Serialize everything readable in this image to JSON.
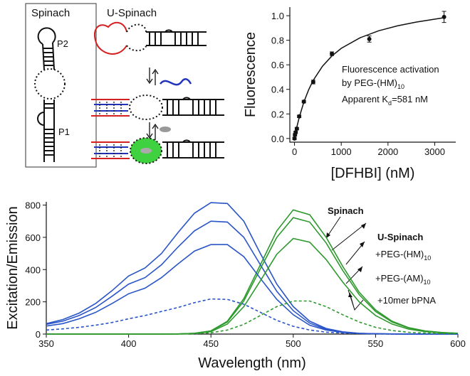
{
  "diagram": {
    "spinach_title": "Spinach",
    "p2": "P2",
    "p1": "P1",
    "u_spinach_title": "U-Spinach"
  },
  "chart_data": [
    {
      "type": "scatter",
      "x": [
        0,
        10,
        25,
        50,
        100,
        200,
        400,
        800,
        1600,
        3200
      ],
      "values": [
        0.0,
        0.03,
        0.05,
        0.08,
        0.18,
        0.3,
        0.46,
        0.69,
        0.81,
        0.99
      ],
      "errors": [
        0.01,
        0.01,
        0.01,
        0.01,
        0.01,
        0.01,
        0.015,
        0.015,
        0.025,
        0.045
      ],
      "color": "#111111",
      "fit": {
        "x": [
          0,
          50,
          100,
          200,
          300,
          400,
          600,
          800,
          1000,
          1400,
          1800,
          2200,
          2600,
          3200
        ],
        "values": [
          0,
          0.092,
          0.17,
          0.297,
          0.395,
          0.473,
          0.589,
          0.672,
          0.734,
          0.82,
          0.877,
          0.917,
          0.948,
          0.984
        ]
      },
      "xlabel": "[DFHBI] (nM)",
      "ylabel": "Fluorescence",
      "xlim": [
        -100,
        3450
      ],
      "ylim": [
        -0.03,
        1.07
      ],
      "xticks": [
        0,
        1000,
        2000,
        3000
      ],
      "yticks": [
        {
          "value": 0,
          "label": "0.0"
        },
        0.2,
        0.4,
        0.6,
        0.8,
        {
          "value": 1,
          "label": "1.0"
        }
      ],
      "annotation": [
        {
          "text": "Fluorescence activation"
        },
        {
          "text": "by PEG-(HM)",
          "sub": "10"
        },
        {
          "text": "Apparent K",
          "sub": "d",
          "after": "=581 nM"
        }
      ]
    },
    {
      "type": "line",
      "x": [
        350,
        360,
        370,
        380,
        390,
        400,
        410,
        420,
        430,
        440,
        450,
        460,
        470,
        480,
        490,
        500,
        510,
        520,
        530,
        540,
        550,
        560,
        570,
        580,
        590,
        600
      ],
      "excitation_color": "#2a55c8",
      "emission_color": "#2e9a2e",
      "xlabel": "Wavelength (nm)",
      "ylabel": "Excitation/Emission",
      "xlim": [
        350,
        600
      ],
      "ylim": [
        0,
        820
      ],
      "xticks": [
        350,
        400,
        450,
        500,
        550,
        600
      ],
      "yticks": [
        0,
        200,
        400,
        600,
        800
      ],
      "group_label": "U-Spinach",
      "series": [
        {
          "name": "Spinach",
          "dashed": false,
          "excitation": [
            65,
            90,
            130,
            190,
            270,
            360,
            410,
            500,
            630,
            750,
            815,
            810,
            700,
            500,
            310,
            170,
            80,
            35,
            14,
            5,
            2,
            1,
            0,
            0,
            0,
            0
          ],
          "emission": [
            0,
            0,
            0,
            0,
            0,
            0,
            0,
            0,
            1,
            5,
            20,
            80,
            220,
            430,
            640,
            770,
            740,
            600,
            420,
            260,
            150,
            80,
            40,
            20,
            10,
            5
          ]
        },
        {
          "name": "+PEG-(HM)",
          "sub": "10",
          "dashed": false,
          "excitation": [
            60,
            80,
            115,
            165,
            235,
            310,
            350,
            430,
            540,
            640,
            700,
            695,
            600,
            430,
            265,
            145,
            68,
            30,
            12,
            4,
            2,
            1,
            0,
            0,
            0,
            0
          ],
          "emission": [
            0,
            0,
            0,
            0,
            0,
            0,
            0,
            0,
            1,
            5,
            19,
            75,
            205,
            405,
            600,
            722,
            695,
            565,
            395,
            245,
            140,
            75,
            38,
            19,
            9,
            5
          ]
        },
        {
          "name": "+PEG-(AM)",
          "sub": "10",
          "dashed": false,
          "excitation": [
            50,
            65,
            95,
            135,
            190,
            250,
            285,
            350,
            435,
            515,
            555,
            555,
            480,
            345,
            215,
            120,
            55,
            25,
            10,
            4,
            2,
            1,
            0,
            0,
            0,
            0
          ],
          "emission": [
            0,
            0,
            0,
            0,
            0,
            0,
            0,
            0,
            1,
            4,
            15,
            62,
            170,
            330,
            495,
            593,
            570,
            462,
            323,
            200,
            115,
            62,
            31,
            15,
            8,
            4
          ]
        },
        {
          "name": "+10mer bPNA",
          "dashed": true,
          "excitation": [
            25,
            32,
            42,
            55,
            72,
            95,
            115,
            140,
            165,
            195,
            218,
            215,
            185,
            135,
            85,
            48,
            25,
            12,
            6,
            3,
            1,
            0,
            0,
            0,
            0,
            0
          ],
          "emission": [
            0,
            0,
            0,
            0,
            0,
            0,
            0,
            0,
            0,
            2,
            8,
            25,
            60,
            115,
            170,
            205,
            205,
            170,
            120,
            75,
            42,
            22,
            11,
            6,
            3,
            2
          ]
        }
      ]
    }
  ]
}
